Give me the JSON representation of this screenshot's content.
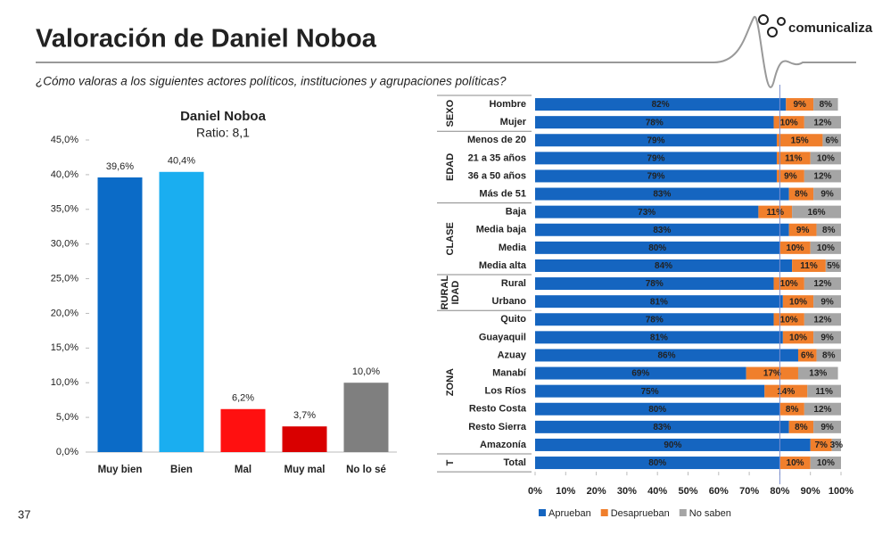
{
  "slide": {
    "title": "Valoración de Daniel Noboa",
    "subtitle": "¿Cómo valoras a los siguientes actores políticos, instituciones y agrupaciones políticas?",
    "logo": "comunicaliza",
    "page_number": "37"
  },
  "chart_data": [
    {
      "type": "bar",
      "title": "Daniel Noboa",
      "subtitle": "Ratio: 8,1",
      "categories": [
        "Muy bien",
        "Bien",
        "Mal",
        "Muy mal",
        "No lo sé"
      ],
      "values": [
        39.6,
        40.4,
        6.2,
        3.7,
        10.0
      ],
      "value_labels": [
        "39,6%",
        "40,4%",
        "6,2%",
        "3,7%",
        "10,0%"
      ],
      "colors": [
        "#0b6bc7",
        "#1aaef0",
        "#ff1010",
        "#d90000",
        "#7f7f7f"
      ],
      "ylim": [
        0,
        45
      ],
      "yticks": [
        {
          "value": 0,
          "label": "0,0%"
        },
        {
          "value": 5,
          "label": "5,0%"
        },
        {
          "value": 10,
          "label": "10,0%"
        },
        {
          "value": 15,
          "label": "15,0%"
        },
        {
          "value": 20,
          "label": "20,0%"
        },
        {
          "value": 25,
          "label": "25,0%"
        },
        {
          "value": 30,
          "label": "30,0%"
        },
        {
          "value": 35,
          "label": "35,0%"
        },
        {
          "value": 40,
          "label": "40,0%"
        },
        {
          "value": 45,
          "label": "45,0%"
        }
      ],
      "grid": false
    },
    {
      "type": "stackedbar",
      "groups": [
        {
          "label": "SEXO",
          "categories": [
            "Hombre",
            "Mujer"
          ]
        },
        {
          "label": "EDAD",
          "categories": [
            "Menos de 20",
            "21 a 35 años",
            "36 a 50 años",
            "Más de 51"
          ]
        },
        {
          "label": "CLASE",
          "categories": [
            "Baja",
            "Media baja",
            "Media",
            "Media alta"
          ]
        },
        {
          "label": "RURAL IDAD",
          "categories": [
            "Rural",
            "Urbano"
          ]
        },
        {
          "label": "ZONA",
          "categories": [
            "Quito",
            "Guayaquil",
            "Azuay",
            "Manabí",
            "Los Ríos",
            "Resto Costa",
            "Resto Sierra",
            "Amazonía"
          ]
        },
        {
          "label": "T",
          "categories": [
            "Total"
          ]
        }
      ],
      "series": [
        {
          "name": "Aprueban",
          "color": "#1565c0",
          "values": [
            82,
            78,
            79,
            79,
            79,
            83,
            73,
            83,
            80,
            84,
            78,
            81,
            78,
            81,
            86,
            69,
            75,
            80,
            83,
            90,
            80
          ],
          "value_labels": [
            "82%",
            "78%",
            "79%",
            "79%",
            "79%",
            "83%",
            "73%",
            "83%",
            "80%",
            "84%",
            "78%",
            "81%",
            "78%",
            "81%",
            "86%",
            "69%",
            "75%",
            "80%",
            "83%",
            "90%",
            "80%"
          ]
        },
        {
          "name": "Desaprueban",
          "color": "#f07f2c",
          "values": [
            9,
            10,
            15,
            11,
            9,
            8,
            11,
            9,
            10,
            11,
            10,
            10,
            10,
            10,
            6,
            17,
            14,
            8,
            8,
            7,
            10
          ],
          "value_labels": [
            "9%",
            "10%",
            "15%",
            "11%",
            "9%",
            "8%",
            "11%",
            "9%",
            "10%",
            "11%",
            "10%",
            "10%",
            "10%",
            "10%",
            "6%",
            "17%",
            "14%",
            "8%",
            "8%",
            "7%",
            "10%"
          ]
        },
        {
          "name": "No saben",
          "color": "#a5a5a5",
          "values": [
            8,
            12,
            6,
            10,
            12,
            9,
            16,
            8,
            10,
            5,
            12,
            9,
            12,
            9,
            8,
            13,
            11,
            12,
            9,
            3,
            10
          ],
          "value_labels": [
            "8%",
            "12%",
            "6%",
            "10%",
            "12%",
            "9%",
            "16%",
            "8%",
            "10%",
            "5%",
            "12%",
            "9%",
            "12%",
            "9%",
            "8%",
            "13%",
            "11%",
            "12%",
            "9%",
            "3%",
            "10%"
          ]
        }
      ],
      "xlim": [
        0,
        100
      ],
      "xticks": [
        {
          "value": 0,
          "label": "0%"
        },
        {
          "value": 10,
          "label": "10%"
        },
        {
          "value": 20,
          "label": "20%"
        },
        {
          "value": 30,
          "label": "30%"
        },
        {
          "value": 40,
          "label": "40%"
        },
        {
          "value": 50,
          "label": "50%"
        },
        {
          "value": 60,
          "label": "60%"
        },
        {
          "value": 70,
          "label": "70%"
        },
        {
          "value": 80,
          "label": "80%"
        },
        {
          "value": 90,
          "label": "90%"
        },
        {
          "value": 100,
          "label": "100%"
        }
      ],
      "reference_line": 80
    }
  ]
}
